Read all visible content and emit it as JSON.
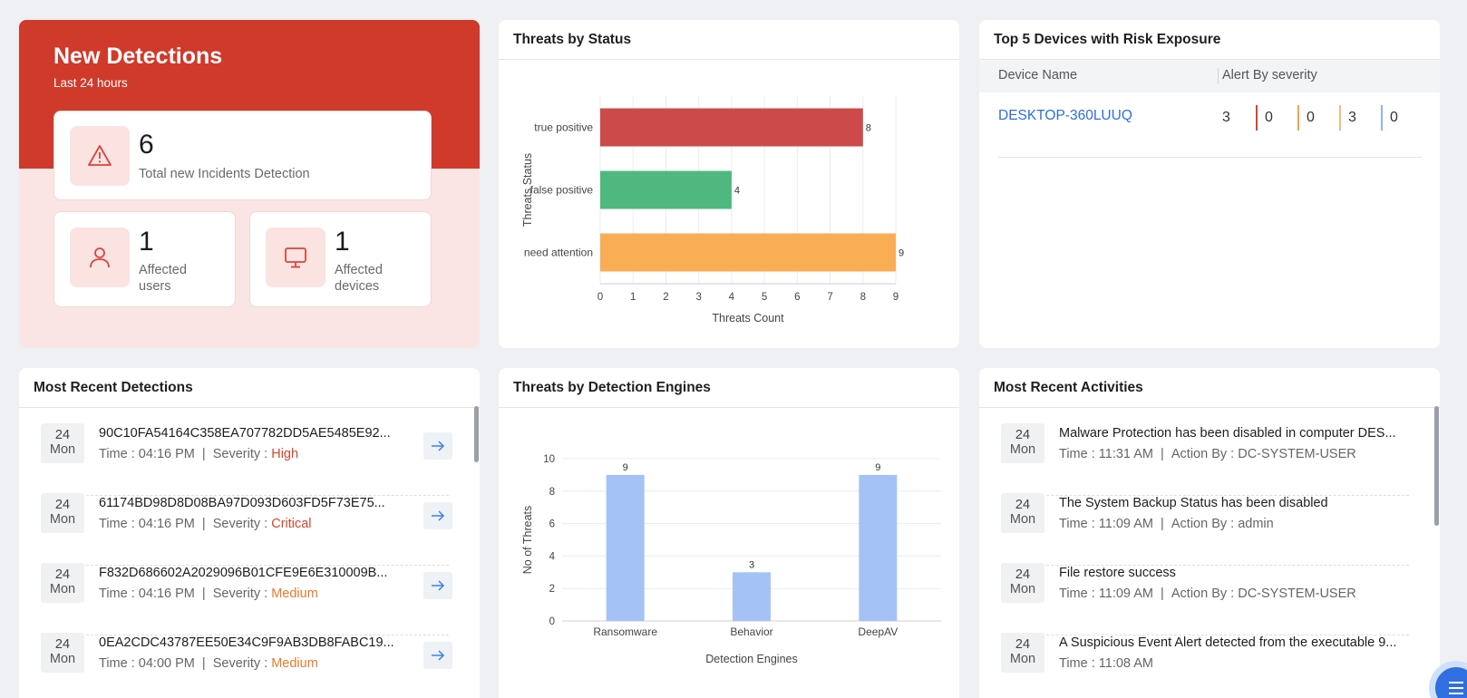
{
  "new_detections": {
    "title": "New Detections",
    "subtitle": "Last 24 hours",
    "total_incidents": {
      "value": "6",
      "label": "Total new Incidents Detection"
    },
    "affected_users": {
      "value": "1",
      "label_line1": "Affected",
      "label_line2": "users"
    },
    "affected_devices": {
      "value": "1",
      "label_line1": "Affected",
      "label_line2": "devices"
    }
  },
  "threats_by_status": {
    "title": "Threats by Status",
    "chart_data": {
      "type": "bar",
      "orientation": "horizontal",
      "categories": [
        "true positive",
        "false positive",
        "need attention"
      ],
      "values": [
        8,
        4,
        9
      ],
      "colors": [
        "#cc4a4a",
        "#4fb87e",
        "#f9ad55"
      ],
      "xlabel": "Threats Count",
      "ylabel": "Threats Status",
      "xlim": [
        0,
        9
      ],
      "xticks": [
        "0",
        "1",
        "2",
        "3",
        "4",
        "5",
        "6",
        "7",
        "8",
        "9"
      ],
      "grid": true
    }
  },
  "top_devices": {
    "title": "Top 5 Devices with Risk Exposure",
    "columns": [
      "Device Name",
      "Alert By severity"
    ],
    "rows": [
      {
        "device": "DESKTOP-360LUUQ",
        "severity_counts": [
          "3",
          "0",
          "0",
          "3",
          "0"
        ]
      }
    ],
    "severity_colors": [
      "#d8452b",
      "#f2a44f",
      "#f4b97e",
      "#8fb4f2"
    ]
  },
  "recent_detections": {
    "title": "Most Recent Detections",
    "time_prefix": "Time : ",
    "severity_prefix": "Severity : ",
    "items": [
      {
        "day": "24",
        "weekday": "Mon",
        "hash": "90C10FA54164C358EA707782DD5AE5485E92...",
        "time": "04:16 PM",
        "severity": "High"
      },
      {
        "day": "24",
        "weekday": "Mon",
        "hash": "61174BD98D8D08BA97D093D603FD5F73E75...",
        "time": "04:16 PM",
        "severity": "Critical"
      },
      {
        "day": "24",
        "weekday": "Mon",
        "hash": "F832D686602A2029096B01CFE9E6E310009B...",
        "time": "04:16 PM",
        "severity": "Medium"
      },
      {
        "day": "24",
        "weekday": "Mon",
        "hash": "0EA2CDC43787EE50E34C9F9AB3DB8FABC19...",
        "time": "04:00 PM",
        "severity": "Medium"
      }
    ]
  },
  "threats_by_engine": {
    "title": "Threats by Detection Engines",
    "chart_data": {
      "type": "bar",
      "categories": [
        "Ransomware",
        "Behavior",
        "DeepAV"
      ],
      "values": [
        9,
        3,
        9
      ],
      "color": "#a5c2f7",
      "xlabel": "Detection Engines",
      "ylabel": "No of Threats",
      "ylim": [
        0,
        10
      ],
      "yticks": [
        "0",
        "2",
        "4",
        "6",
        "8",
        "10"
      ],
      "grid": true
    }
  },
  "recent_activities": {
    "title": "Most Recent Activities",
    "time_prefix": "Time : ",
    "action_prefix": "Action By : ",
    "items": [
      {
        "day": "24",
        "weekday": "Mon",
        "text": "Malware Protection has been disabled in computer DES...",
        "time": "11:31 AM",
        "action_by": "DC-SYSTEM-USER"
      },
      {
        "day": "24",
        "weekday": "Mon",
        "text": "The System Backup Status has been disabled",
        "time": "11:09 AM",
        "action_by": "admin"
      },
      {
        "day": "24",
        "weekday": "Mon",
        "text": "File restore success",
        "time": "11:09 AM",
        "action_by": "DC-SYSTEM-USER"
      },
      {
        "day": "24",
        "weekday": "Mon",
        "text": "A Suspicious Event Alert detected from the executable 9...",
        "time": "11:08 AM",
        "action_by": ""
      }
    ]
  },
  "fab": {
    "icon": "menu-icon"
  },
  "accent_color": "#cf3a2b"
}
